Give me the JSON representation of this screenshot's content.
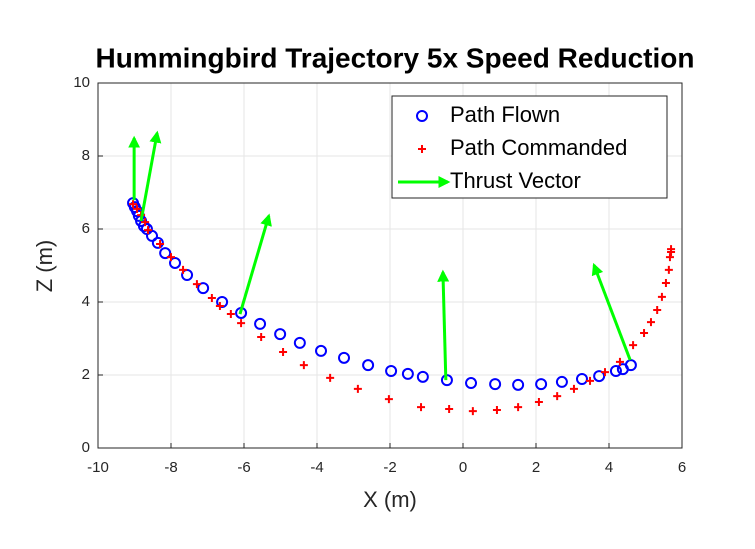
{
  "chart_data": {
    "type": "scatter",
    "title": "Hummingbird Trajectory 5x Speed Reduction",
    "x_label": "X (m)",
    "y_label": "Z (m)",
    "xlim": [
      -10,
      6
    ],
    "xticks": [
      -10,
      -8,
      -6,
      -4,
      -2,
      0,
      2,
      4,
      6
    ],
    "ylim": [
      0,
      10
    ],
    "yticks": [
      0,
      2,
      4,
      6,
      8,
      10
    ],
    "grid": true,
    "legend": "northeast",
    "series": [
      {
        "name": "Path Flown",
        "color": "#0000ff",
        "marker": "circle",
        "x": [
          -9.04,
          -8.99,
          -8.93,
          -8.88,
          -8.82,
          -8.74,
          -8.66,
          -8.52,
          -8.36,
          -8.16,
          -7.89,
          -7.56,
          -7.12,
          -6.6,
          -6.08,
          -5.56,
          -5.01,
          -4.47,
          -3.89,
          -3.26,
          -2.6,
          -1.97,
          -1.51,
          -1.1,
          -0.44,
          0.22,
          0.88,
          1.51,
          2.14,
          2.71,
          3.26,
          3.73,
          4.19,
          4.38,
          4.6
        ],
        "y": [
          6.71,
          6.6,
          6.49,
          6.36,
          6.22,
          6.08,
          6.0,
          5.81,
          5.62,
          5.34,
          5.07,
          4.74,
          4.38,
          4.0,
          3.7,
          3.4,
          3.12,
          2.88,
          2.66,
          2.47,
          2.27,
          2.11,
          2.03,
          1.95,
          1.86,
          1.78,
          1.75,
          1.73,
          1.75,
          1.81,
          1.89,
          1.97,
          2.11,
          2.16,
          2.27
        ]
      },
      {
        "name": "Path Commanded",
        "color": "#ff0000",
        "marker": "plus",
        "x": [
          -9.04,
          -8.93,
          -8.82,
          -8.71,
          -8.63,
          -8.3,
          -8.0,
          -7.67,
          -7.29,
          -6.88,
          -6.66,
          -6.36,
          -6.08,
          -5.53,
          -4.93,
          -4.36,
          -3.64,
          -2.88,
          -2.03,
          -1.15,
          -0.38,
          0.27,
          0.93,
          1.51,
          2.08,
          2.58,
          3.04,
          3.48,
          3.89,
          4.3,
          4.66,
          4.96,
          5.15,
          5.32,
          5.45,
          5.56,
          5.64,
          5.67,
          5.7,
          5.7
        ],
        "y": [
          6.68,
          6.55,
          6.38,
          6.19,
          5.97,
          5.59,
          5.23,
          4.88,
          4.49,
          4.11,
          3.89,
          3.67,
          3.42,
          3.04,
          2.63,
          2.27,
          1.92,
          1.62,
          1.34,
          1.12,
          1.07,
          1.01,
          1.04,
          1.12,
          1.26,
          1.42,
          1.62,
          1.84,
          2.08,
          2.36,
          2.82,
          3.15,
          3.45,
          3.78,
          4.14,
          4.52,
          4.88,
          5.23,
          5.37,
          5.45
        ]
      },
      {
        "name": "Thrust Vector",
        "color": "#00ff00",
        "marker": "arrow",
        "x": [
          -9.01,
          -8.82,
          -6.11,
          -0.47,
          4.58
        ],
        "y": [
          6.79,
          6.22,
          3.67,
          1.86,
          2.41
        ],
        "x_end": [
          -9.01,
          -8.38,
          -5.32,
          -0.55,
          3.59
        ],
        "y_end": [
          8.49,
          8.63,
          6.36,
          4.82,
          5.01
        ]
      }
    ]
  }
}
